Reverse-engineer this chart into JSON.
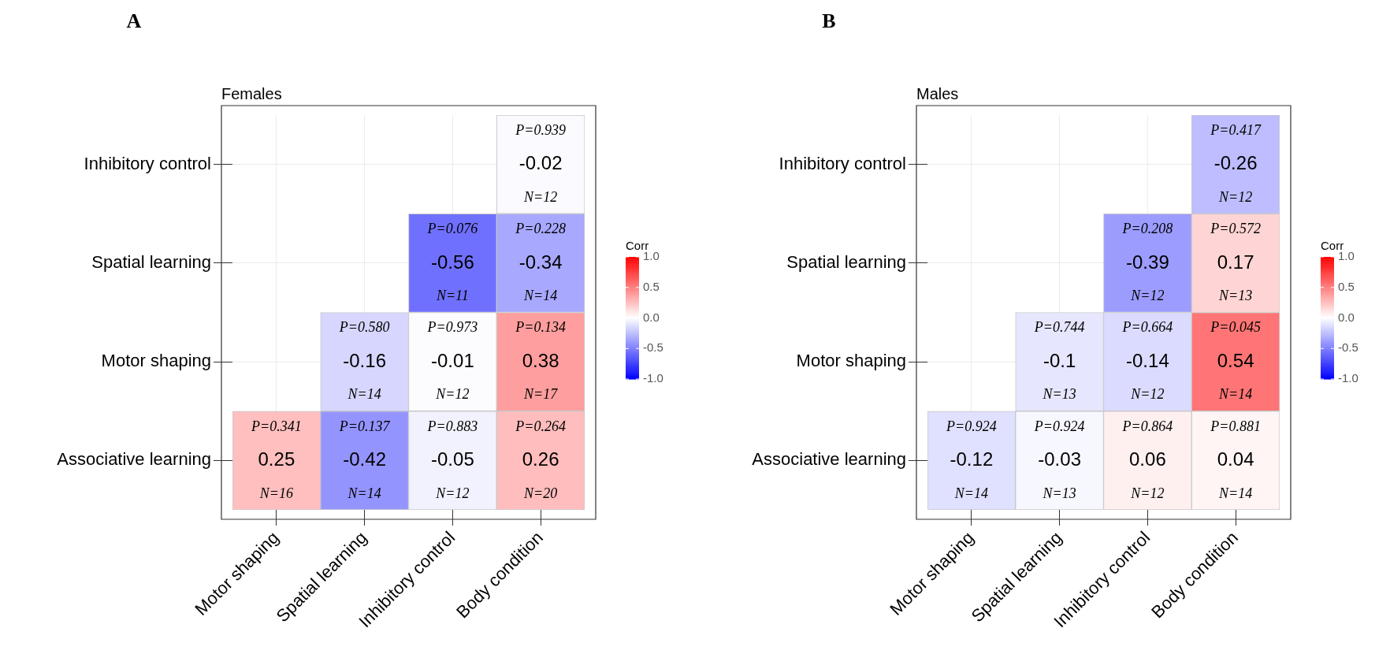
{
  "chart_data": [
    {
      "type": "heatmap",
      "title": "A",
      "subtitle": "Females",
      "clabel": "Corr",
      "grid": true,
      "categories": [
        "Motor shaping",
        "Spatial learning",
        "Inhibitory control",
        "Body condition"
      ],
      "y_categories": [
        "Inhibitory control",
        "Spatial learning",
        "Motor shaping",
        "Associative learning"
      ],
      "cells": [
        [
          null,
          null,
          null,
          -0.02
        ],
        [
          null,
          null,
          -0.56,
          -0.34
        ],
        [
          null,
          -0.16,
          -0.01,
          0.38
        ],
        [
          0.25,
          -0.42,
          -0.05,
          0.26
        ]
      ],
      "cell_labels": [
        [
          null,
          null,
          null,
          "P=0.939\n-0.02\nN=12"
        ],
        [
          null,
          null,
          "P=0.076\n-0.56\nN=11",
          "P=0.228\n-0.34\nN=14"
        ],
        [
          null,
          "P=0.580\n-0.16\nN=14",
          "P=0.973\n-0.01\nN=12",
          "P=0.134\n0.38\nN=17"
        ],
        [
          "P=0.341\n0.25\nN=16",
          "P=0.137\n-0.42\nN=14",
          "P=0.883\n-0.05\nN=12",
          "P=0.264\n0.26\nN=20"
        ]
      ],
      "clim": [
        -1,
        1
      ],
      "cticks": [
        {
          "value": -1,
          "label": "-1.0"
        },
        {
          "value": -0.5,
          "label": "-0.5"
        },
        {
          "value": 0,
          "label": "0.0"
        },
        {
          "value": 0.5,
          "label": "0.5"
        },
        {
          "value": 1,
          "label": "1.0"
        }
      ]
    },
    {
      "type": "heatmap",
      "title": "B",
      "subtitle": "Males",
      "clabel": "Corr",
      "grid": true,
      "categories": [
        "Motor shaping",
        "Spatial learning",
        "Inhibitory control",
        "Body condition"
      ],
      "y_categories": [
        "Inhibitory control",
        "Spatial learning",
        "Motor shaping",
        "Associative learning"
      ],
      "cells": [
        [
          null,
          null,
          null,
          -0.26
        ],
        [
          null,
          null,
          -0.39,
          0.17
        ],
        [
          null,
          -0.1,
          -0.14,
          0.54
        ],
        [
          -0.12,
          -0.03,
          0.06,
          0.04
        ]
      ],
      "cell_labels": [
        [
          null,
          null,
          null,
          "P=0.417\n-0.26\nN=12"
        ],
        [
          null,
          null,
          "P=0.208\n-0.39\nN=12",
          "P=0.572\n0.17\nN=13"
        ],
        [
          null,
          "P=0.744\n-0.1\nN=13",
          "P=0.664\n-0.14\nN=12",
          "P=0.045\n0.54\nN=14"
        ],
        [
          "P=0.924\n-0.12\nN=14",
          "P=0.924\n-0.03\nN=13",
          "P=0.864\n0.06\nN=12",
          "P=0.881\n0.04\nN=14"
        ]
      ],
      "clim": [
        -1,
        1
      ],
      "cticks": [
        {
          "value": -1,
          "label": "-1.0"
        },
        {
          "value": -0.5,
          "label": "-0.5"
        },
        {
          "value": 0,
          "label": "0.0"
        },
        {
          "value": 0.5,
          "label": "0.5"
        },
        {
          "value": 1,
          "label": "1.0"
        }
      ]
    }
  ]
}
